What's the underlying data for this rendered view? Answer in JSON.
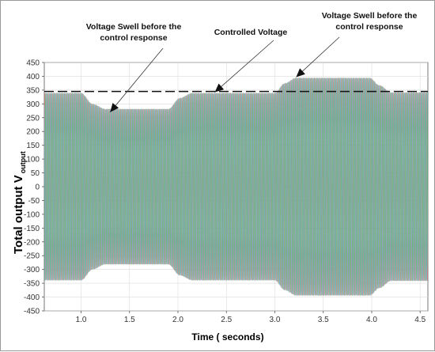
{
  "chart_data": {
    "type": "line",
    "title": "",
    "xlabel": "Time ( seconds)",
    "ylabel": "Total output V",
    "ylabel_subscript": "output",
    "xlim": [
      0.62,
      4.58
    ],
    "ylim": [
      -450,
      450
    ],
    "xticks": [
      "1.0",
      "1.5",
      "2.0",
      "2.5",
      "3.0",
      "3.5",
      "4.0",
      "4.5"
    ],
    "yticks": [
      "450",
      "400",
      "350",
      "300",
      "250",
      "200",
      "150",
      "100",
      "50",
      "0",
      "-50",
      "-100",
      "-150",
      "-200",
      "-250",
      "-300",
      "-350",
      "-400",
      "-450"
    ],
    "grid": true,
    "reference_level": 345,
    "series": [
      {
        "color": "#e0707a"
      },
      {
        "color": "#6aa0e0"
      },
      {
        "color": "#5fb86a"
      }
    ],
    "envelope": [
      {
        "t": 0.62,
        "amp": 340
      },
      {
        "t": 1.0,
        "amp": 340
      },
      {
        "t": 1.12,
        "amp": 300
      },
      {
        "t": 1.25,
        "amp": 282
      },
      {
        "t": 1.9,
        "amp": 282
      },
      {
        "t": 2.02,
        "amp": 322
      },
      {
        "t": 2.15,
        "amp": 340
      },
      {
        "t": 3.0,
        "amp": 340
      },
      {
        "t": 3.1,
        "amp": 375
      },
      {
        "t": 3.22,
        "amp": 395
      },
      {
        "t": 3.98,
        "amp": 395
      },
      {
        "t": 4.08,
        "amp": 368
      },
      {
        "t": 4.2,
        "amp": 342
      },
      {
        "t": 4.58,
        "amp": 342
      }
    ],
    "annotations": [
      {
        "lines": [
          "Voltage Swell before the",
          "control response"
        ],
        "arrow_to": [
          1.3,
          270
        ]
      },
      {
        "lines": [
          "Controlled Voltage"
        ],
        "arrow_to": [
          2.38,
          342
        ]
      },
      {
        "lines": [
          "Voltage Swell before the",
          "control response"
        ],
        "arrow_to": [
          3.22,
          397
        ]
      }
    ]
  }
}
